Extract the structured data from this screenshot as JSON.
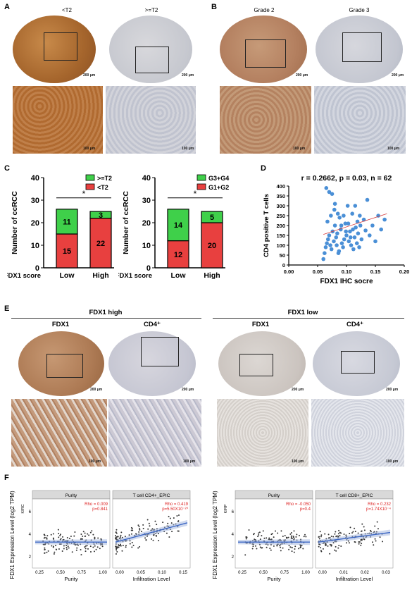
{
  "panels": {
    "A": {
      "label": "A",
      "col1": "<T2",
      "col2": ">=T2",
      "scale_top": "200 μm",
      "scale_bottom": "100 μm"
    },
    "B": {
      "label": "B",
      "col1": "Grade 2",
      "col2": "Grade 3",
      "scale_top": "200 μm",
      "scale_bottom": "100 μm"
    },
    "C": {
      "label": "C"
    },
    "D": {
      "label": "D"
    },
    "E": {
      "label": "E",
      "group_left": "FDX1 high",
      "group_right": "FDX1 low",
      "col_fdx1": "FDX1",
      "col_cd4": "CD4⁺",
      "scale_top": "200 μm",
      "scale_bottom": "100 μm"
    },
    "F": {
      "label": "F"
    }
  },
  "colors": {
    "red": "#e8403f",
    "green": "#3fd04a",
    "brown": "#b5773f",
    "blue": "#4a8fd6",
    "fit_red": "#d63a3a",
    "fit_blue": "#3b66c4"
  },
  "chart_data": [
    {
      "id": "C-left",
      "type": "bar",
      "stacked": true,
      "categories": [
        "Low",
        "High"
      ],
      "category_axis_prefix": "FDX1 score",
      "series": [
        {
          "name": "<T2",
          "values": [
            15,
            22
          ],
          "color": "#e8403f"
        },
        {
          "name": ">=T2",
          "values": [
            11,
            3
          ],
          "color": "#3fd04a"
        }
      ],
      "ylabel": "Number of ccRCC",
      "ylim": [
        0,
        40
      ],
      "yticks": [
        0,
        10,
        20,
        30,
        40
      ],
      "annotation": "*",
      "legend": "top-right"
    },
    {
      "id": "C-right",
      "type": "bar",
      "stacked": true,
      "categories": [
        "Low",
        "High"
      ],
      "category_axis_prefix": "FDX1 score",
      "series": [
        {
          "name": "G1+G2",
          "values": [
            12,
            20
          ],
          "color": "#e8403f"
        },
        {
          "name": "G3+G4",
          "values": [
            14,
            5
          ],
          "color": "#3fd04a"
        }
      ],
      "ylabel": "Number of ccRCC",
      "ylim": [
        0,
        40
      ],
      "yticks": [
        0,
        10,
        20,
        30,
        40
      ],
      "annotation": "*",
      "legend": "top-right"
    },
    {
      "id": "D",
      "type": "scatter",
      "title": "r = 0.2662, p = 0.03, n = 62",
      "xlabel": "FDX1 IHC socre",
      "ylabel": "CD4 positive T cells",
      "xlim": [
        0,
        0.2
      ],
      "ylim": [
        0,
        400
      ],
      "xticks": [
        "0.00",
        "0.05",
        "0.10",
        "0.15",
        "0.20"
      ],
      "yticks": [
        "0",
        "50",
        "100",
        "150",
        "200",
        "250",
        "300",
        "350",
        "400"
      ],
      "points": [
        [
          0.06,
          30
        ],
        [
          0.062,
          60
        ],
        [
          0.064,
          90
        ],
        [
          0.066,
          110
        ],
        [
          0.068,
          130
        ],
        [
          0.07,
          150
        ],
        [
          0.072,
          100
        ],
        [
          0.074,
          80
        ],
        [
          0.076,
          170
        ],
        [
          0.078,
          120
        ],
        [
          0.08,
          200
        ],
        [
          0.082,
          140
        ],
        [
          0.084,
          160
        ],
        [
          0.086,
          60
        ],
        [
          0.088,
          240
        ],
        [
          0.09,
          180
        ],
        [
          0.092,
          110
        ],
        [
          0.094,
          90
        ],
        [
          0.096,
          130
        ],
        [
          0.098,
          210
        ],
        [
          0.1,
          150
        ],
        [
          0.102,
          300
        ],
        [
          0.104,
          120
        ],
        [
          0.106,
          170
        ],
        [
          0.108,
          100
        ],
        [
          0.11,
          260
        ],
        [
          0.112,
          80
        ],
        [
          0.114,
          140
        ],
        [
          0.116,
          190
        ],
        [
          0.118,
          110
        ],
        [
          0.12,
          160
        ],
        [
          0.122,
          90
        ],
        [
          0.124,
          200
        ],
        [
          0.126,
          130
        ],
        [
          0.13,
          230
        ],
        [
          0.133,
          175
        ],
        [
          0.136,
          330
        ],
        [
          0.14,
          150
        ],
        [
          0.145,
          200
        ],
        [
          0.15,
          120
        ],
        [
          0.155,
          250
        ],
        [
          0.16,
          180
        ],
        [
          0.166,
          230
        ],
        [
          0.065,
          390
        ],
        [
          0.07,
          370
        ],
        [
          0.075,
          360
        ],
        [
          0.08,
          310
        ],
        [
          0.085,
          260
        ],
        [
          0.067,
          220
        ],
        [
          0.073,
          250
        ],
        [
          0.079,
          280
        ],
        [
          0.083,
          100
        ],
        [
          0.087,
          70
        ],
        [
          0.091,
          200
        ],
        [
          0.095,
          250
        ],
        [
          0.099,
          170
        ],
        [
          0.103,
          210
        ],
        [
          0.107,
          140
        ],
        [
          0.111,
          180
        ],
        [
          0.115,
          300
        ],
        [
          0.119,
          220
        ],
        [
          0.123,
          250
        ]
      ],
      "fit": [
        [
          0.06,
          155
        ],
        [
          0.17,
          260
        ]
      ]
    },
    {
      "id": "F-left",
      "type": "scatter",
      "facets": true,
      "ylabel": "FDX1 Expression Level (log2 TPM)",
      "row_label": "KIRC",
      "yticks": [
        "2",
        "4",
        "6"
      ],
      "panels": [
        {
          "strip": "Purity",
          "xlabel": "Purity",
          "rho": "Rho = 0.009",
          "p": "p=0.841",
          "xticks": [
            "0.25",
            "0.50",
            "0.75",
            "1.00"
          ],
          "xlim": [
            0.1,
            1.0
          ]
        },
        {
          "strip": "T cell CD4+_EPIC",
          "xlabel": "Infiltration Level",
          "rho": "Rho = 0.419",
          "p": "p=5.50X10⁻²⁰",
          "xticks": [
            "0.00",
            "0.05",
            "0.10",
            "0.15"
          ],
          "xlim": [
            -0.02,
            0.16
          ]
        }
      ]
    },
    {
      "id": "F-right",
      "type": "scatter",
      "facets": true,
      "ylabel": "FDX1 Expression Level (log2 TPM)",
      "row_label": "KIRP",
      "yticks": [
        "2",
        "4",
        "6"
      ],
      "panels": [
        {
          "strip": "Purity",
          "xlabel": "Purity",
          "rho": "Rho = -0.050",
          "p": "p=0.4",
          "xticks": [
            "0.25",
            "0.50",
            "0.75",
            "1.00"
          ],
          "xlim": [
            0.1,
            1.0
          ]
        },
        {
          "strip": "T cell CD8+_EPIC",
          "xlabel": "Infiltration Level",
          "rho": "Rho = 0.232",
          "p": "p=1.74X10⁻⁴",
          "xticks": [
            "0.00",
            "0.01",
            "0.02",
            "0.03"
          ],
          "xlim": [
            -0.005,
            0.035
          ]
        }
      ]
    }
  ]
}
